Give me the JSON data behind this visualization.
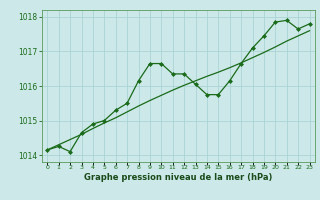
{
  "xlabel": "Graphe pression niveau de la mer (hPa)",
  "bg_color": "#cce8e8",
  "grid_color": "#aad4d4",
  "line_color": "#1a6b1a",
  "x_values": [
    0,
    1,
    2,
    3,
    4,
    5,
    6,
    7,
    8,
    9,
    10,
    11,
    12,
    13,
    14,
    15,
    16,
    17,
    18,
    19,
    20,
    21,
    22,
    23
  ],
  "y_data": [
    1014.15,
    1014.25,
    1014.1,
    1014.65,
    1014.9,
    1015.0,
    1015.3,
    1015.5,
    1016.15,
    1016.65,
    1016.65,
    1016.35,
    1016.35,
    1016.05,
    1015.75,
    1015.75,
    1016.15,
    1016.65,
    1017.1,
    1017.45,
    1017.85,
    1017.9,
    1017.65,
    1017.8
  ],
  "y_trend": [
    1014.15,
    1014.3,
    1014.45,
    1014.6,
    1014.77,
    1014.93,
    1015.08,
    1015.25,
    1015.42,
    1015.58,
    1015.73,
    1015.88,
    1016.02,
    1016.15,
    1016.28,
    1016.4,
    1016.53,
    1016.67,
    1016.82,
    1016.97,
    1017.13,
    1017.3,
    1017.45,
    1017.6
  ],
  "ylim_min": 1013.8,
  "ylim_max": 1018.2,
  "yticks": [
    1014,
    1015,
    1016,
    1017,
    1018
  ],
  "xlim_min": -0.5,
  "xlim_max": 23.5
}
